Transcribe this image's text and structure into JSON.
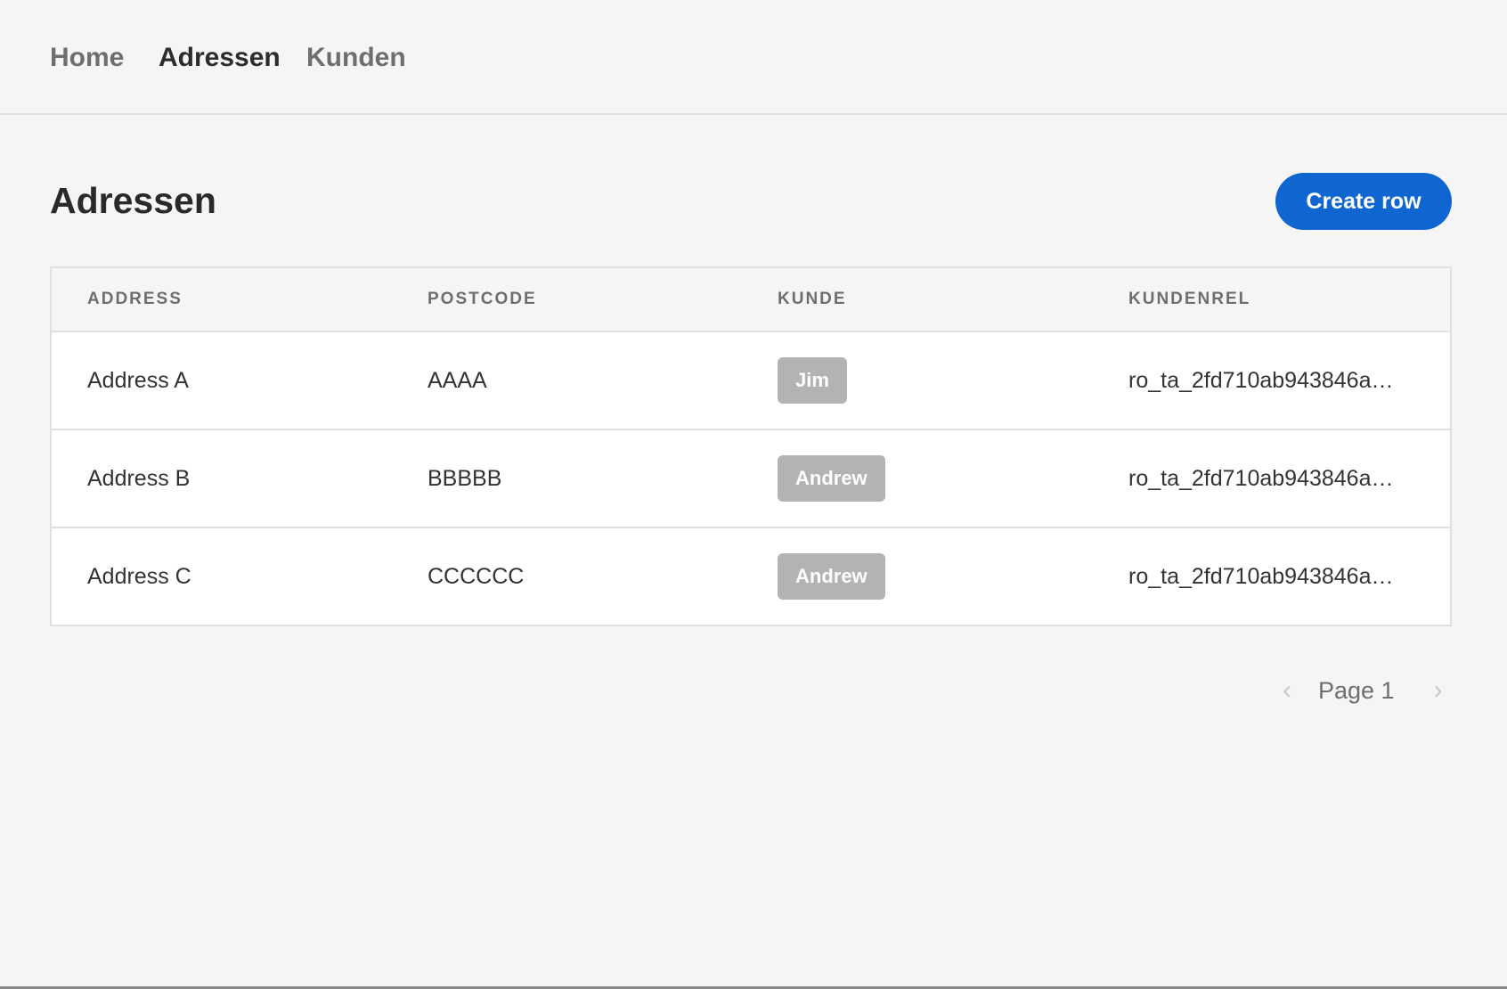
{
  "nav": {
    "items": [
      {
        "label": "Home",
        "active": false
      },
      {
        "label": "Adressen",
        "active": true
      },
      {
        "label": "Kunden",
        "active": false
      }
    ]
  },
  "page": {
    "title": "Adressen",
    "create_label": "Create row"
  },
  "colors": {
    "accent": "#0f66d0",
    "badge": "#b3b3b3"
  },
  "table": {
    "columns": [
      "ADDRESS",
      "POSTCODE",
      "KUNDE",
      "KUNDENREL"
    ],
    "rows": [
      [
        "Address A",
        "AAAA",
        "Jim",
        "ro_ta_2fd710ab943846a…"
      ],
      [
        "Address B",
        "BBBBB",
        "Andrew",
        "ro_ta_2fd710ab943846a…"
      ],
      [
        "Address C",
        "CCCCCC",
        "Andrew",
        "ro_ta_2fd710ab943846a…"
      ]
    ]
  },
  "pagination": {
    "label": "Page 1",
    "prev_icon": "chevron-left",
    "next_icon": "chevron-right"
  }
}
